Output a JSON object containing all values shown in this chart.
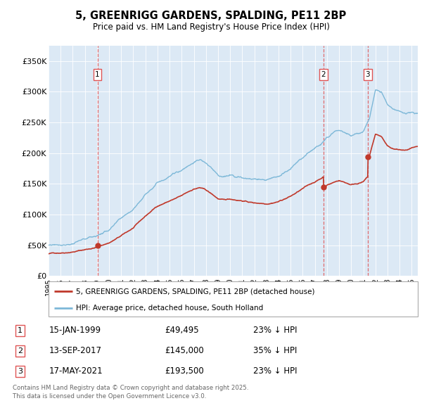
{
  "title": "5, GREENRIGG GARDENS, SPALDING, PE11 2BP",
  "subtitle": "Price paid vs. HM Land Registry's House Price Index (HPI)",
  "plot_bg_color": "#dce9f5",
  "ylim": [
    0,
    375000
  ],
  "yticks": [
    0,
    50000,
    100000,
    150000,
    200000,
    250000,
    300000,
    350000
  ],
  "ytick_labels": [
    "£0",
    "£50K",
    "£100K",
    "£150K",
    "£200K",
    "£250K",
    "£300K",
    "£350K"
  ],
  "xlim_start": 1995,
  "xlim_end": 2025.5,
  "sale_year_nums": [
    1999.04,
    2017.71,
    2021.37
  ],
  "sale_prices": [
    49495,
    145000,
    193500
  ],
  "sale_labels": [
    "1",
    "2",
    "3"
  ],
  "legend_red": "5, GREENRIGG GARDENS, SPALDING, PE11 2BP (detached house)",
  "legend_blue": "HPI: Average price, detached house, South Holland",
  "table_rows": [
    [
      "1",
      "15-JAN-1999",
      "£49,495",
      "23% ↓ HPI"
    ],
    [
      "2",
      "13-SEP-2017",
      "£145,000",
      "35% ↓ HPI"
    ],
    [
      "3",
      "17-MAY-2021",
      "£193,500",
      "23% ↓ HPI"
    ]
  ],
  "footer": "Contains HM Land Registry data © Crown copyright and database right 2025.\nThis data is licensed under the Open Government Licence v3.0.",
  "hpi_color": "#7db8d8",
  "price_color": "#c0392b",
  "vline_color": "#e05555",
  "marker_color": "#c0392b",
  "hpi_knots": [
    1995,
    1996,
    1997,
    1998,
    1999,
    2000,
    2001,
    2002,
    2003,
    2004,
    2005,
    2006,
    2007,
    2007.5,
    2008,
    2009,
    2009.5,
    2010,
    2011,
    2012,
    2013,
    2014,
    2015,
    2016,
    2017,
    2017.5,
    2018,
    2019,
    2020,
    2021,
    2021.5,
    2022,
    2022.5,
    2023,
    2023.5,
    2024,
    2024.5,
    2025
  ],
  "hpi_vals": [
    50000,
    53000,
    57000,
    62000,
    68000,
    78000,
    93000,
    110000,
    135000,
    158000,
    170000,
    180000,
    195000,
    198000,
    192000,
    172000,
    168000,
    170000,
    168000,
    163000,
    163000,
    170000,
    182000,
    198000,
    213000,
    220000,
    232000,
    244000,
    234000,
    242000,
    258000,
    305000,
    300000,
    278000,
    272000,
    270000,
    268000,
    272000
  ],
  "hpi_noise_seed": 77,
  "hpi_noise_scale": 2500,
  "price_noise_seed": 42,
  "price_noise_scale": 1200
}
